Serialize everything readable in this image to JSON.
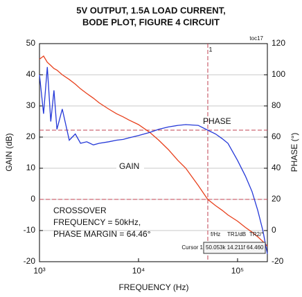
{
  "chart_data": {
    "type": "line",
    "title": [
      "5V OUTPUT, 1.5A LOAD CURRENT,",
      "BODE PLOT, FIGURE 4 CIRCUIT"
    ],
    "x_label": "FREQUENCY (Hz)",
    "y_label": "GAIN (dB)",
    "y2_label": "PHASE (°)",
    "x_log": true,
    "grid": true,
    "x": [
      1000,
      1100,
      1200,
      1300,
      1400,
      1500,
      1700,
      2000,
      2300,
      2600,
      3000,
      3500,
      4000,
      5000,
      6000,
      7000,
      8000,
      10000,
      13000,
      16000,
      20000,
      25000,
      30000,
      40000,
      50000,
      60000,
      70000,
      80000,
      100000,
      120000,
      140000,
      160000,
      180000,
      200000
    ],
    "series": [
      {
        "name": "GAIN",
        "color": "#e8401c",
        "axis": "y",
        "values": [
          45,
          46,
          44,
          43,
          42,
          41.5,
          40,
          38.5,
          37,
          35.5,
          34,
          32.5,
          31,
          29,
          27.5,
          26.5,
          25.5,
          24,
          21.5,
          19,
          16,
          12.5,
          10,
          4.5,
          0,
          -2,
          -3.5,
          -5,
          -7,
          -9,
          -10.5,
          -12,
          -13.5,
          -15
        ]
      },
      {
        "name": "PHASE",
        "color": "#2438d8",
        "axis": "y2",
        "values": [
          100,
          75,
          105,
          70,
          90,
          65,
          78,
          58,
          62,
          56,
          57,
          55,
          56,
          57,
          58,
          58.5,
          59.5,
          61,
          63,
          65,
          66.5,
          67.5,
          68,
          67.5,
          64.46,
          62,
          59,
          56,
          45,
          35,
          25,
          13,
          0,
          -15
        ]
      }
    ],
    "xlim": [
      1000,
      200000
    ],
    "xticks": [
      {
        "value": 1000,
        "label": "10³"
      },
      {
        "value": 10000,
        "label": "10⁴"
      },
      {
        "value": 100000,
        "label": "10⁵"
      }
    ],
    "ylim": [
      -20,
      50
    ],
    "yticks": [
      -20,
      -10,
      0,
      10,
      20,
      30,
      40,
      50
    ],
    "y2lim": [
      -20,
      120
    ],
    "y2ticks": [
      -20,
      0,
      20,
      40,
      60,
      80,
      100,
      120
    ],
    "reference_lines": [
      {
        "axis": "y",
        "value": 0,
        "color": "#c04050"
      },
      {
        "axis": "y2",
        "value": 64.46,
        "color": "#c04050"
      },
      {
        "axis": "x",
        "value": 50053,
        "color": "#c04050"
      }
    ],
    "annotations": [
      {
        "text": "toc17",
        "color": "#111"
      },
      {
        "text": "1",
        "color": "#e8401c"
      },
      {
        "text": "PHASE",
        "color": "#111"
      },
      {
        "text": "GAIN",
        "color": "#111"
      },
      {
        "text": "CROSSOVER",
        "color": "#111"
      },
      {
        "text": "FREQUENCY = 50kHz,",
        "color": "#111"
      },
      {
        "text": "PHASE MARGIN = 64.46°",
        "color": "#111"
      },
      {
        "text": "f/Hz",
        "color": "#111"
      },
      {
        "text": "TR1/dB",
        "color": "#e8401c"
      },
      {
        "text": "TR2/°",
        "color": "#2438d8"
      },
      {
        "text": "Cursor 1",
        "color": "#e8401c"
      },
      {
        "text": "50.053k  14.211f  64.460",
        "color": "#111"
      }
    ]
  }
}
